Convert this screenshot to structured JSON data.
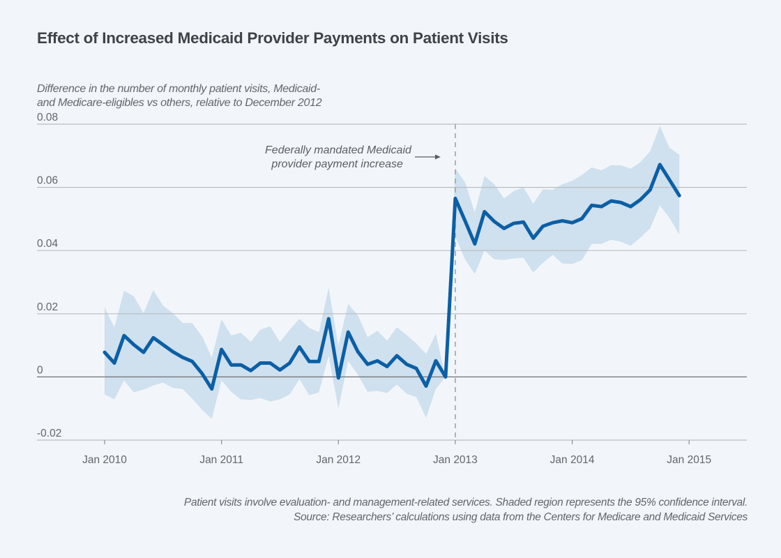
{
  "chart_data": {
    "type": "line",
    "title": "Effect of Increased Medicaid Provider Payments on Patient Visits",
    "subtitle": [
      "Difference in the number of monthly patient visits, Medicaid-",
      "and Medicare-eligibles vs others, relative to December 2012"
    ],
    "xlabel": "",
    "ylabel": "",
    "ylim": [
      -0.02,
      0.08
    ],
    "yticks": [
      {
        "value": 0.08,
        "label": "0.08"
      },
      {
        "value": 0.06,
        "label": "0.06"
      },
      {
        "value": 0.04,
        "label": "0.04"
      },
      {
        "value": 0.02,
        "label": "0.02"
      },
      {
        "value": 0,
        "label": "0"
      },
      {
        "value": -0.02,
        "label": "-0.02"
      }
    ],
    "xticks": [
      {
        "month_index": 0,
        "label": "Jan 2010"
      },
      {
        "month_index": 12,
        "label": "Jan 2011"
      },
      {
        "month_index": 24,
        "label": "Jan 2012"
      },
      {
        "month_index": 36,
        "label": "Jan 2013"
      },
      {
        "month_index": 48,
        "label": "Jan 2014"
      },
      {
        "month_index": 60,
        "label": "Jan 2015"
      }
    ],
    "x_start": "Jan 2010",
    "x_unit": "month",
    "xlim_months": [
      -7,
      65
    ],
    "grid": true,
    "series": [
      {
        "name": "Difference in monthly patient visits",
        "color": "#0b5fa5",
        "values": [
          0.0078,
          0.0044,
          0.0131,
          0.0102,
          0.0078,
          0.0124,
          0.0102,
          0.008,
          0.0062,
          0.0049,
          0.0011,
          -0.0038,
          0.0087,
          0.0038,
          0.0038,
          0.002,
          0.0044,
          0.0044,
          0.0022,
          0.0044,
          0.0095,
          0.0049,
          0.0049,
          0.0184,
          -0.0003,
          0.0142,
          0.008,
          0.004,
          0.0051,
          0.0033,
          0.0067,
          0.004,
          0.0027,
          -0.0029,
          0.0051,
          0.0,
          0.0565,
          0.0494,
          0.0421,
          0.0523,
          0.0492,
          0.047,
          0.0486,
          0.049,
          0.0439,
          0.0477,
          0.0488,
          0.0494,
          0.0488,
          0.0501,
          0.0543,
          0.0539,
          0.0557,
          0.0552,
          0.0539,
          0.0561,
          0.0592,
          0.0672,
          0.0623,
          0.0574
        ]
      }
    ],
    "confidence_interval": {
      "name": "95% confidence interval",
      "color": "#cfe0ee",
      "upper": [
        0.022,
        0.0157,
        0.0273,
        0.0255,
        0.0202,
        0.0275,
        0.0226,
        0.0202,
        0.0171,
        0.017,
        0.0129,
        0.0062,
        0.0182,
        0.0131,
        0.014,
        0.0111,
        0.015,
        0.016,
        0.0111,
        0.0149,
        0.0184,
        0.0155,
        0.0142,
        0.0282,
        0.01,
        0.0231,
        0.0195,
        0.0126,
        0.0146,
        0.0115,
        0.0157,
        0.0133,
        0.0106,
        0.0073,
        0.0137,
        0.0,
        0.066,
        0.0616,
        0.0521,
        0.0636,
        0.061,
        0.0565,
        0.0588,
        0.06,
        0.0548,
        0.0594,
        0.0592,
        0.061,
        0.0621,
        0.0639,
        0.0663,
        0.0654,
        0.067,
        0.067,
        0.0659,
        0.068,
        0.0714,
        0.0794,
        0.0725,
        0.0703
      ],
      "lower": [
        -0.0055,
        -0.0071,
        -0.0011,
        -0.0049,
        -0.004,
        -0.0027,
        -0.0018,
        -0.0035,
        -0.0038,
        -0.0069,
        -0.0104,
        -0.0133,
        -0.0011,
        -0.0047,
        -0.0071,
        -0.0073,
        -0.0067,
        -0.0078,
        -0.0071,
        -0.0055,
        -0.0007,
        -0.0058,
        -0.0049,
        0.0067,
        -0.01,
        0.005,
        0.0007,
        -0.0047,
        -0.0044,
        -0.0051,
        -0.0024,
        -0.0053,
        -0.0064,
        -0.0129,
        -0.0038,
        0.0,
        0.0443,
        0.0372,
        0.0326,
        0.04,
        0.0372,
        0.037,
        0.0375,
        0.0377,
        0.033,
        0.0361,
        0.0386,
        0.0359,
        0.0357,
        0.037,
        0.0421,
        0.0421,
        0.0434,
        0.0428,
        0.0415,
        0.0441,
        0.047,
        0.0543,
        0.0503,
        0.045
      ]
    },
    "annotations": [
      {
        "text": [
          "Federally mandated Medicaid",
          "provider payment increase"
        ],
        "month_index": 36,
        "type": "dashed-vertical-line-with-arrow"
      }
    ],
    "legend": "none"
  },
  "footer": {
    "note": "Patient visits involve evaluation- and management-related services. Shaded region represents the 95% confidence interval.",
    "source": "Source: Researchers’ calculations using data from the Centers for Medicare and Medicaid Services"
  },
  "colors": {
    "background": "#f2f6fa",
    "line": "#0b5fa5",
    "band": "#cfe0ee",
    "grid": "#b9bcc0",
    "zero_line": "#6d7075",
    "text": "#62666b"
  }
}
